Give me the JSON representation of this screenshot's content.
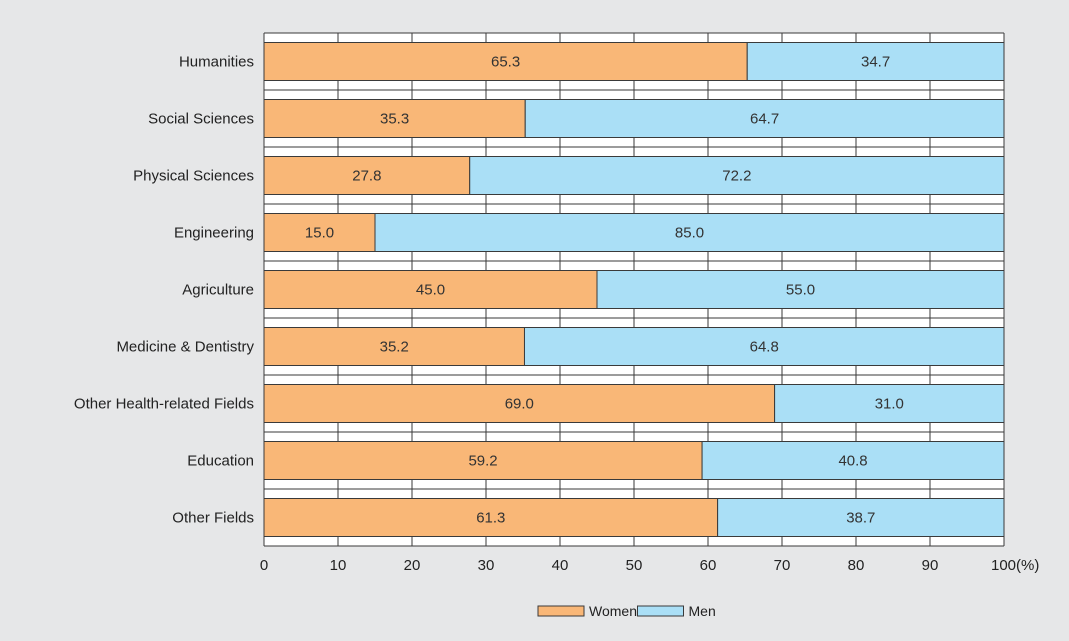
{
  "chart_data": {
    "type": "bar",
    "orientation": "horizontal",
    "stacked": true,
    "categories": [
      "Humanities",
      "Social Sciences",
      "Physical Sciences",
      "Engineering",
      "Agriculture",
      "Medicine & Dentistry",
      "Other Health-related Fields",
      "Education",
      "Other Fields"
    ],
    "series": [
      {
        "name": "Women",
        "color": "#f9b777",
        "values": [
          65.3,
          35.3,
          27.8,
          15.0,
          45.0,
          35.2,
          69.0,
          59.2,
          61.3
        ]
      },
      {
        "name": "Men",
        "color": "#aadff6",
        "values": [
          34.7,
          64.7,
          72.2,
          85.0,
          55.0,
          64.8,
          31.0,
          40.8,
          38.7
        ]
      }
    ],
    "value_labels": [
      [
        "65.3",
        "35.3",
        "27.8",
        "15.0",
        "45.0",
        "35.2",
        "69.0",
        "59.2",
        "61.3"
      ],
      [
        "34.7",
        "64.7",
        "72.2",
        "85.0",
        "55.0",
        "64.8",
        "31.0",
        "40.8",
        "38.7"
      ]
    ],
    "x_ticks": [
      "0",
      "10",
      "20",
      "30",
      "40",
      "50",
      "60",
      "70",
      "80",
      "90",
      "100(%)"
    ],
    "xlim": [
      0,
      100
    ],
    "grid": true,
    "legend_position": "bottom-center",
    "plot_background": "#ffffff",
    "page_background": "#e6e7e8"
  }
}
